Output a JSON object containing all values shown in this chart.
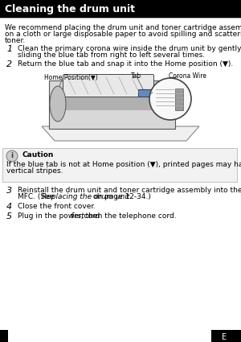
{
  "title": "Cleaning the drum unit",
  "title_bg": "#000000",
  "title_color": "#ffffff",
  "page_bg": "#ffffff",
  "intro_lines": [
    "We recommend placing the drum unit and toner cartridge assembly",
    "on a cloth or large disposable paper to avoid spilling and scattering",
    "toner."
  ],
  "caution_title": "Caution",
  "caution_lines": [
    "If the blue tab is not at Home position (▼), printed pages may have",
    "vertical stripes."
  ],
  "diagram_labels": {
    "home_position": "Home Position(▼)",
    "tab": "Tab",
    "corona_wire": "Corona Wire"
  },
  "page_number": "E",
  "font_size_title": 9,
  "font_size_body": 6.5,
  "font_size_step_num": 8,
  "font_size_label": 5.5
}
